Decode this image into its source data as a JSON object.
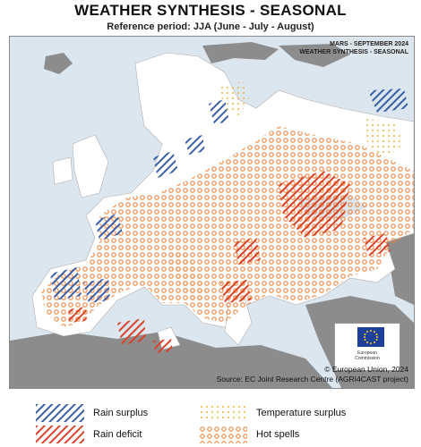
{
  "title": "WEATHER SYNTHESIS - SEASONAL",
  "subtitle": "Reference period: JJA (June - July - August)",
  "stamp": {
    "line1": "MARS - SEPTEMBER 2024",
    "line2": "WEATHER SYNTHESIS - SEASONAL"
  },
  "credit": {
    "line1": "© European Union, 2024",
    "line2": "Source: EC Joint Research Centre (AGRI4CAST project)"
  },
  "eu_logo": {
    "line1": "European",
    "line2": "Commission"
  },
  "legend": [
    {
      "key": "rain_surplus",
      "label": "Rain surplus",
      "icon": "blue-hatch",
      "color": "#3b5fa8"
    },
    {
      "key": "rain_deficit",
      "label": "Rain deficit",
      "icon": "red-hatch",
      "color": "#d8452b"
    },
    {
      "key": "temp_surplus",
      "label": "Temperature surplus",
      "icon": "yellow-dots",
      "color": "#f0b43c"
    },
    {
      "key": "hot_spells",
      "label": "Hot spells",
      "icon": "orange-circles",
      "color": "#ee8540"
    }
  ],
  "colors": {
    "sea": "#dbe6ef",
    "land": "#ffffff",
    "non_eu_land": "#8c8c8c",
    "border": "#b0b0b0"
  }
}
